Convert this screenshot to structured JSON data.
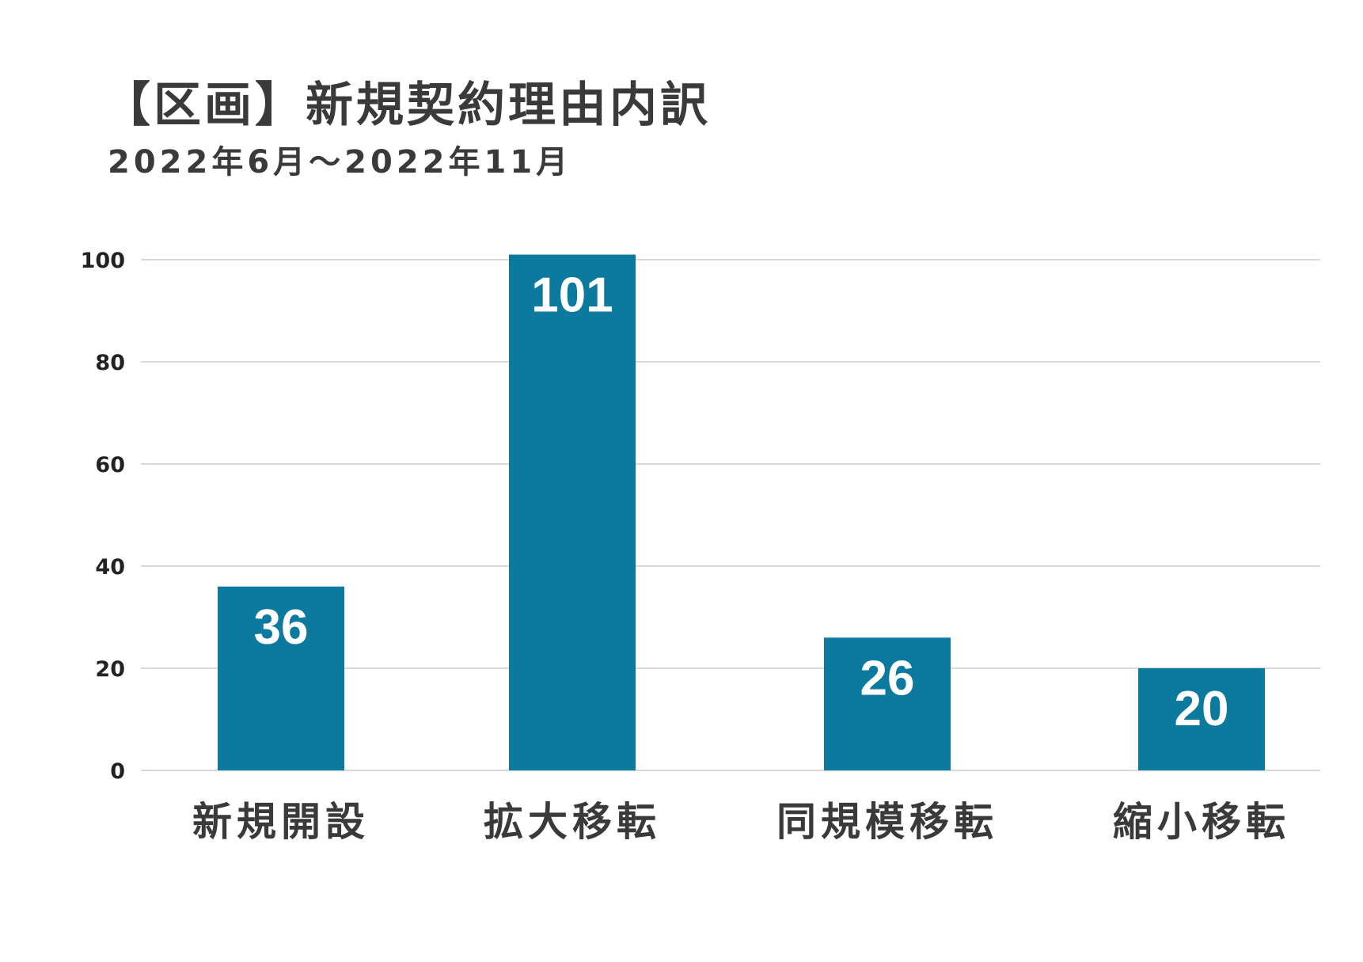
{
  "chart_data": {
    "type": "bar",
    "title": "【区画】新規契約理由内訳",
    "subtitle": "2022年6月～2022年11月",
    "categories": [
      "新規開設",
      "拡大移転",
      "同規模移転",
      "縮小移転"
    ],
    "values": [
      36,
      101,
      26,
      20
    ],
    "value_labels": [
      "36",
      "101",
      "26",
      "20"
    ],
    "yticks": [
      "0",
      "20",
      "40",
      "60",
      "80",
      "100"
    ],
    "ylim": [
      0,
      100
    ],
    "grid": true,
    "bar_color": "#0b7a9e",
    "xlabel": "",
    "ylabel": ""
  }
}
